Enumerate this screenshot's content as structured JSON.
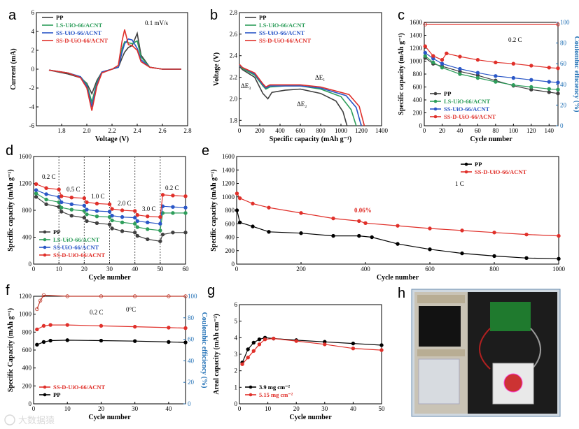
{
  "panels": {
    "a": "a",
    "b": "b",
    "c": "c",
    "d": "d",
    "e": "e",
    "f": "f",
    "g": "g",
    "h": "h"
  },
  "chart_data": [
    {
      "id": "a",
      "type": "line",
      "xlabel": "Voltage (V)",
      "ylabel": "Current (mA)",
      "xlim": [
        1.6,
        2.8
      ],
      "ylim": [
        -6,
        6
      ],
      "xticks": [
        "1.8",
        "2.0",
        "2.2",
        "2.4",
        "2.6",
        "2.8"
      ],
      "yticks": [
        "-6",
        "-4",
        "-2",
        "0",
        "2",
        "4",
        "6"
      ],
      "annotations": [
        "0.1 mV/s"
      ],
      "legend": "top-left",
      "series": [
        {
          "name": "PP",
          "color": "#404040",
          "x": [
            1.7,
            1.85,
            1.95,
            2.0,
            2.04,
            2.08,
            2.12,
            2.2,
            2.25,
            2.28,
            2.3,
            2.33,
            2.36,
            2.4,
            2.43,
            2.5,
            2.6,
            2.75
          ],
          "y": [
            -0.1,
            -0.5,
            -0.9,
            -1.5,
            -2.6,
            -1.2,
            -0.3,
            0,
            0.2,
            1.2,
            1.8,
            2.3,
            2.5,
            3.8,
            1.5,
            0.2,
            0,
            0
          ]
        },
        {
          "name": "LS-UiO-66/ACNT",
          "color": "#2e9e5b",
          "x": [
            1.7,
            1.85,
            1.95,
            2.0,
            2.04,
            2.08,
            2.12,
            2.2,
            2.25,
            2.28,
            2.3,
            2.33,
            2.36,
            2.4,
            2.43,
            2.5,
            2.6,
            2.75
          ],
          "y": [
            -0.1,
            -0.4,
            -0.8,
            -1.6,
            -3.5,
            -1.4,
            -0.3,
            0,
            0.2,
            2.2,
            2.9,
            2.8,
            2.7,
            3.0,
            1.3,
            0.2,
            0,
            0
          ]
        },
        {
          "name": "SS-UiO-66/ACNT",
          "color": "#2a57c7",
          "x": [
            1.7,
            1.85,
            1.95,
            2.0,
            2.04,
            2.08,
            2.12,
            2.2,
            2.25,
            2.28,
            2.3,
            2.33,
            2.36,
            2.4,
            2.43,
            2.5,
            2.6,
            2.75
          ],
          "y": [
            -0.1,
            -0.4,
            -0.8,
            -1.8,
            -4.0,
            -1.6,
            -0.3,
            0,
            0.2,
            1.8,
            2.7,
            3.2,
            3.1,
            2.2,
            1.0,
            0.2,
            0,
            0
          ]
        },
        {
          "name": "SS-D-UiO-66/ACNT",
          "color": "#e0302a",
          "x": [
            1.7,
            1.85,
            1.95,
            2.0,
            2.04,
            2.08,
            2.12,
            2.2,
            2.25,
            2.28,
            2.3,
            2.33,
            2.36,
            2.4,
            2.43,
            2.5,
            2.6,
            2.75
          ],
          "y": [
            -0.1,
            -0.4,
            -0.9,
            -2.0,
            -4.4,
            -1.8,
            -0.4,
            0,
            0.4,
            3.0,
            4.2,
            2.6,
            2.5,
            2.0,
            0.8,
            0.2,
            0,
            0
          ]
        }
      ]
    },
    {
      "id": "b",
      "type": "line",
      "xlabel": "Specific capacity (mAh g⁻¹)",
      "ylabel": "Voltage (V)",
      "xlim": [
        0,
        1400
      ],
      "ylim": [
        1.75,
        2.8
      ],
      "xticks": [
        "0",
        "200",
        "400",
        "600",
        "800",
        "1000",
        "1200",
        "1400"
      ],
      "yticks": [
        "1.8",
        "2.0",
        "2.2",
        "2.4",
        "2.6",
        "2.8"
      ],
      "annotations": [
        "ΔE₁",
        "ΔE₂",
        "ΔE₃"
      ],
      "legend": "top-left",
      "series": [
        {
          "name": "PP",
          "color": "#404040",
          "x": [
            0,
            30,
            150,
            230,
            280,
            320,
            450,
            600,
            800,
            950,
            1020,
            1060
          ],
          "y": [
            2.3,
            2.27,
            2.2,
            2.05,
            2.0,
            2.06,
            2.08,
            2.09,
            2.05,
            1.98,
            1.88,
            1.75
          ]
        },
        {
          "name": "LS-UiO-66/ACNT",
          "color": "#2e9e5b",
          "x": [
            0,
            30,
            150,
            230,
            260,
            300,
            450,
            600,
            800,
            1000,
            1100,
            1150
          ],
          "y": [
            2.31,
            2.28,
            2.22,
            2.12,
            2.09,
            2.11,
            2.12,
            2.12,
            2.09,
            2.02,
            1.9,
            1.75
          ]
        },
        {
          "name": "SS-UiO-66/ACNT",
          "color": "#2a57c7",
          "x": [
            0,
            30,
            150,
            230,
            260,
            300,
            450,
            600,
            800,
            1050,
            1150,
            1200
          ],
          "y": [
            2.31,
            2.29,
            2.23,
            2.13,
            2.1,
            2.12,
            2.12,
            2.12,
            2.1,
            2.03,
            1.92,
            1.75
          ]
        },
        {
          "name": "SS-D-UiO-66/ACNT",
          "color": "#e0302a",
          "x": [
            0,
            30,
            150,
            230,
            260,
            300,
            450,
            600,
            800,
            1080,
            1180,
            1230
          ],
          "y": [
            2.32,
            2.29,
            2.24,
            2.14,
            2.11,
            2.13,
            2.13,
            2.13,
            2.11,
            2.04,
            1.93,
            1.75
          ]
        }
      ]
    },
    {
      "id": "c",
      "type": "scatter",
      "xlabel": "Cycle number",
      "ylabel": "Specific capacity (mAh g⁻¹)",
      "y2label": "Coulombic efficiency (%)",
      "xlim": [
        0,
        150
      ],
      "ylim": [
        0,
        1600
      ],
      "y2lim": [
        0,
        100
      ],
      "xticks": [
        "0",
        "20",
        "40",
        "60",
        "80",
        "100",
        "120",
        "140"
      ],
      "yticks": [
        "0",
        "200",
        "400",
        "600",
        "800",
        "1000",
        "1200",
        "1400",
        "1600"
      ],
      "y2ticks": [
        "0",
        "20",
        "40",
        "60",
        "80",
        "100"
      ],
      "annotations": [
        "0.2 C"
      ],
      "legend": "bottom-left",
      "series": [
        {
          "name": "PP",
          "color": "#404040",
          "x": [
            1,
            10,
            20,
            40,
            60,
            80,
            100,
            120,
            140,
            150
          ],
          "y": [
            1050,
            960,
            920,
            840,
            780,
            700,
            620,
            560,
            520,
            500
          ]
        },
        {
          "name": "LS-UiO-66/ACNT",
          "color": "#2e9e5b",
          "x": [
            1,
            10,
            20,
            40,
            60,
            80,
            100,
            120,
            140,
            150
          ],
          "y": [
            1080,
            980,
            900,
            800,
            740,
            680,
            630,
            600,
            570,
            560
          ]
        },
        {
          "name": "SS-UiO-66/ACNT",
          "color": "#2a57c7",
          "x": [
            1,
            10,
            20,
            40,
            60,
            80,
            100,
            120,
            140,
            150
          ],
          "y": [
            1130,
            1040,
            960,
            880,
            820,
            770,
            740,
            710,
            680,
            670
          ]
        },
        {
          "name": "SS-D-UiO-66/ACNT",
          "color": "#e0302a",
          "x": [
            1,
            10,
            20,
            25,
            40,
            60,
            80,
            100,
            120,
            140,
            150
          ],
          "y": [
            1230,
            1080,
            1020,
            1120,
            1070,
            1020,
            980,
            960,
            930,
            900,
            890
          ]
        },
        {
          "name": "CE",
          "color": "#e0302a",
          "axis": "y2",
          "x": [
            1,
            150
          ],
          "y": [
            98,
            98
          ]
        }
      ]
    },
    {
      "id": "d",
      "type": "scatter",
      "xlabel": "Cycle number",
      "ylabel": "Specific capacity (mAh g⁻¹)",
      "xlim": [
        0,
        60
      ],
      "ylim": [
        0,
        1600
      ],
      "xticks": [
        "0",
        "10",
        "20",
        "30",
        "40",
        "50",
        "60"
      ],
      "yticks": [
        "0",
        "400",
        "800",
        "1200",
        "1600"
      ],
      "annotations": [
        "0.2 C",
        "0.5 C",
        "1.0 C",
        "2.0 C",
        "3.0 C",
        "0.2 C"
      ],
      "legend": "bottom-left",
      "series": [
        {
          "name": "PP",
          "color": "#404040",
          "x": [
            1,
            5,
            10,
            11,
            15,
            20,
            21,
            25,
            30,
            31,
            35,
            40,
            41,
            45,
            50,
            51,
            55,
            60
          ],
          "y": [
            1000,
            890,
            850,
            780,
            720,
            690,
            640,
            610,
            590,
            530,
            490,
            470,
            420,
            370,
            340,
            440,
            470,
            470
          ]
        },
        {
          "name": "LS-UiO-66/ACNT",
          "color": "#2e9e5b",
          "x": [
            1,
            5,
            10,
            11,
            15,
            20,
            21,
            25,
            30,
            31,
            35,
            40,
            41,
            45,
            50,
            51,
            55,
            60
          ],
          "y": [
            1050,
            960,
            920,
            840,
            810,
            790,
            740,
            710,
            700,
            650,
            620,
            600,
            550,
            520,
            500,
            760,
            760,
            760
          ]
        },
        {
          "name": "SS-UiO-66/ACNT",
          "color": "#2a57c7",
          "x": [
            1,
            5,
            10,
            11,
            15,
            20,
            21,
            25,
            30,
            31,
            35,
            40,
            41,
            45,
            50,
            51,
            55,
            60
          ],
          "y": [
            1100,
            1040,
            1000,
            920,
            890,
            870,
            810,
            790,
            780,
            720,
            700,
            690,
            640,
            620,
            600,
            860,
            850,
            840
          ]
        },
        {
          "name": "SS-D-UiO-66/ACNT",
          "color": "#e0302a",
          "x": [
            1,
            5,
            10,
            11,
            15,
            20,
            21,
            25,
            30,
            31,
            35,
            40,
            41,
            45,
            50,
            51,
            55,
            60
          ],
          "y": [
            1190,
            1130,
            1110,
            1010,
            990,
            980,
            920,
            900,
            890,
            820,
            800,
            790,
            730,
            710,
            700,
            1030,
            1020,
            1010
          ]
        }
      ]
    },
    {
      "id": "e",
      "type": "scatter",
      "xlabel": "Cycle number",
      "ylabel": "Specific capacity (mAh g⁻¹)",
      "xlim": [
        0,
        1000
      ],
      "ylim": [
        0,
        1600
      ],
      "xticks": [
        "0",
        "200",
        "400",
        "600",
        "800",
        "1000"
      ],
      "yticks": [
        "0",
        "200",
        "400",
        "600",
        "800",
        "1000",
        "1200",
        "1400",
        "1600"
      ],
      "annotations": [
        "1 C",
        "0.06%"
      ],
      "legend": "top-right",
      "series": [
        {
          "name": "PP",
          "color": "#000000",
          "x": [
            1,
            10,
            50,
            100,
            200,
            300,
            380,
            420,
            500,
            600,
            700,
            800,
            900,
            1000
          ],
          "y": [
            800,
            620,
            560,
            480,
            460,
            420,
            420,
            400,
            300,
            220,
            160,
            120,
            90,
            80
          ]
        },
        {
          "name": "SS-D-UiO-66/ACNT",
          "color": "#e0302a",
          "x": [
            1,
            10,
            50,
            100,
            200,
            300,
            380,
            400,
            500,
            600,
            700,
            800,
            900,
            1000
          ],
          "y": [
            1050,
            980,
            900,
            840,
            760,
            680,
            640,
            610,
            570,
            530,
            500,
            470,
            440,
            420
          ]
        }
      ]
    },
    {
      "id": "f",
      "type": "scatter",
      "xlabel": "Cycle number",
      "ylabel": "Specific Capacity (mAh g⁻¹)",
      "y2label": "Coulombic efficiency (%)",
      "xlim": [
        0,
        45
      ],
      "ylim": [
        0,
        1200
      ],
      "y2lim": [
        0,
        100
      ],
      "xticks": [
        "0",
        "10",
        "20",
        "30",
        "40"
      ],
      "yticks": [
        "0",
        "200",
        "400",
        "600",
        "800",
        "1000",
        "1200"
      ],
      "y2ticks": [
        "0",
        "20",
        "40",
        "60",
        "80",
        "100"
      ],
      "annotations": [
        "0.2 C",
        "0°C"
      ],
      "legend": "bottom-left",
      "series": [
        {
          "name": "SS-D-UiO-66/ACNT",
          "color": "#e0302a",
          "x": [
            1,
            3,
            5,
            10,
            20,
            30,
            40,
            45
          ],
          "y": [
            830,
            870,
            880,
            880,
            870,
            860,
            850,
            845
          ]
        },
        {
          "name": "PP",
          "color": "#000000",
          "x": [
            1,
            3,
            5,
            10,
            20,
            30,
            40,
            45
          ],
          "y": [
            660,
            690,
            705,
            710,
            705,
            700,
            690,
            685
          ]
        },
        {
          "name": "CE",
          "color": "#c0392b",
          "axis": "y2",
          "x": [
            1,
            2,
            3,
            10,
            20,
            30,
            40,
            45
          ],
          "y": [
            88,
            96,
            101,
            100,
            100,
            100,
            100,
            100
          ]
        }
      ]
    },
    {
      "id": "g",
      "type": "scatter",
      "xlabel": "Cycle number",
      "ylabel": "Areal capacity (mAh cm⁻²)",
      "xlim": [
        0,
        50
      ],
      "ylim": [
        0,
        6
      ],
      "xticks": [
        "0",
        "10",
        "20",
        "30",
        "40",
        "50"
      ],
      "yticks": [
        "0",
        "1",
        "2",
        "3",
        "4",
        "5",
        "6"
      ],
      "legend": "bottom-left",
      "series": [
        {
          "name": "3.9 mg cm⁻²",
          "color": "#000000",
          "x": [
            1,
            3,
            5,
            7,
            9,
            12,
            20,
            30,
            40,
            50
          ],
          "y": [
            2.5,
            3.3,
            3.7,
            3.9,
            4.0,
            3.95,
            3.85,
            3.75,
            3.65,
            3.55
          ]
        },
        {
          "name": "5.15 mg cm⁻²",
          "color": "#e0302a",
          "x": [
            1,
            3,
            5,
            7,
            9,
            12,
            20,
            30,
            40,
            50
          ],
          "y": [
            2.4,
            2.8,
            3.2,
            3.6,
            3.9,
            3.95,
            3.8,
            3.6,
            3.35,
            3.25
          ]
        }
      ]
    }
  ],
  "watermark": "大数据猿"
}
